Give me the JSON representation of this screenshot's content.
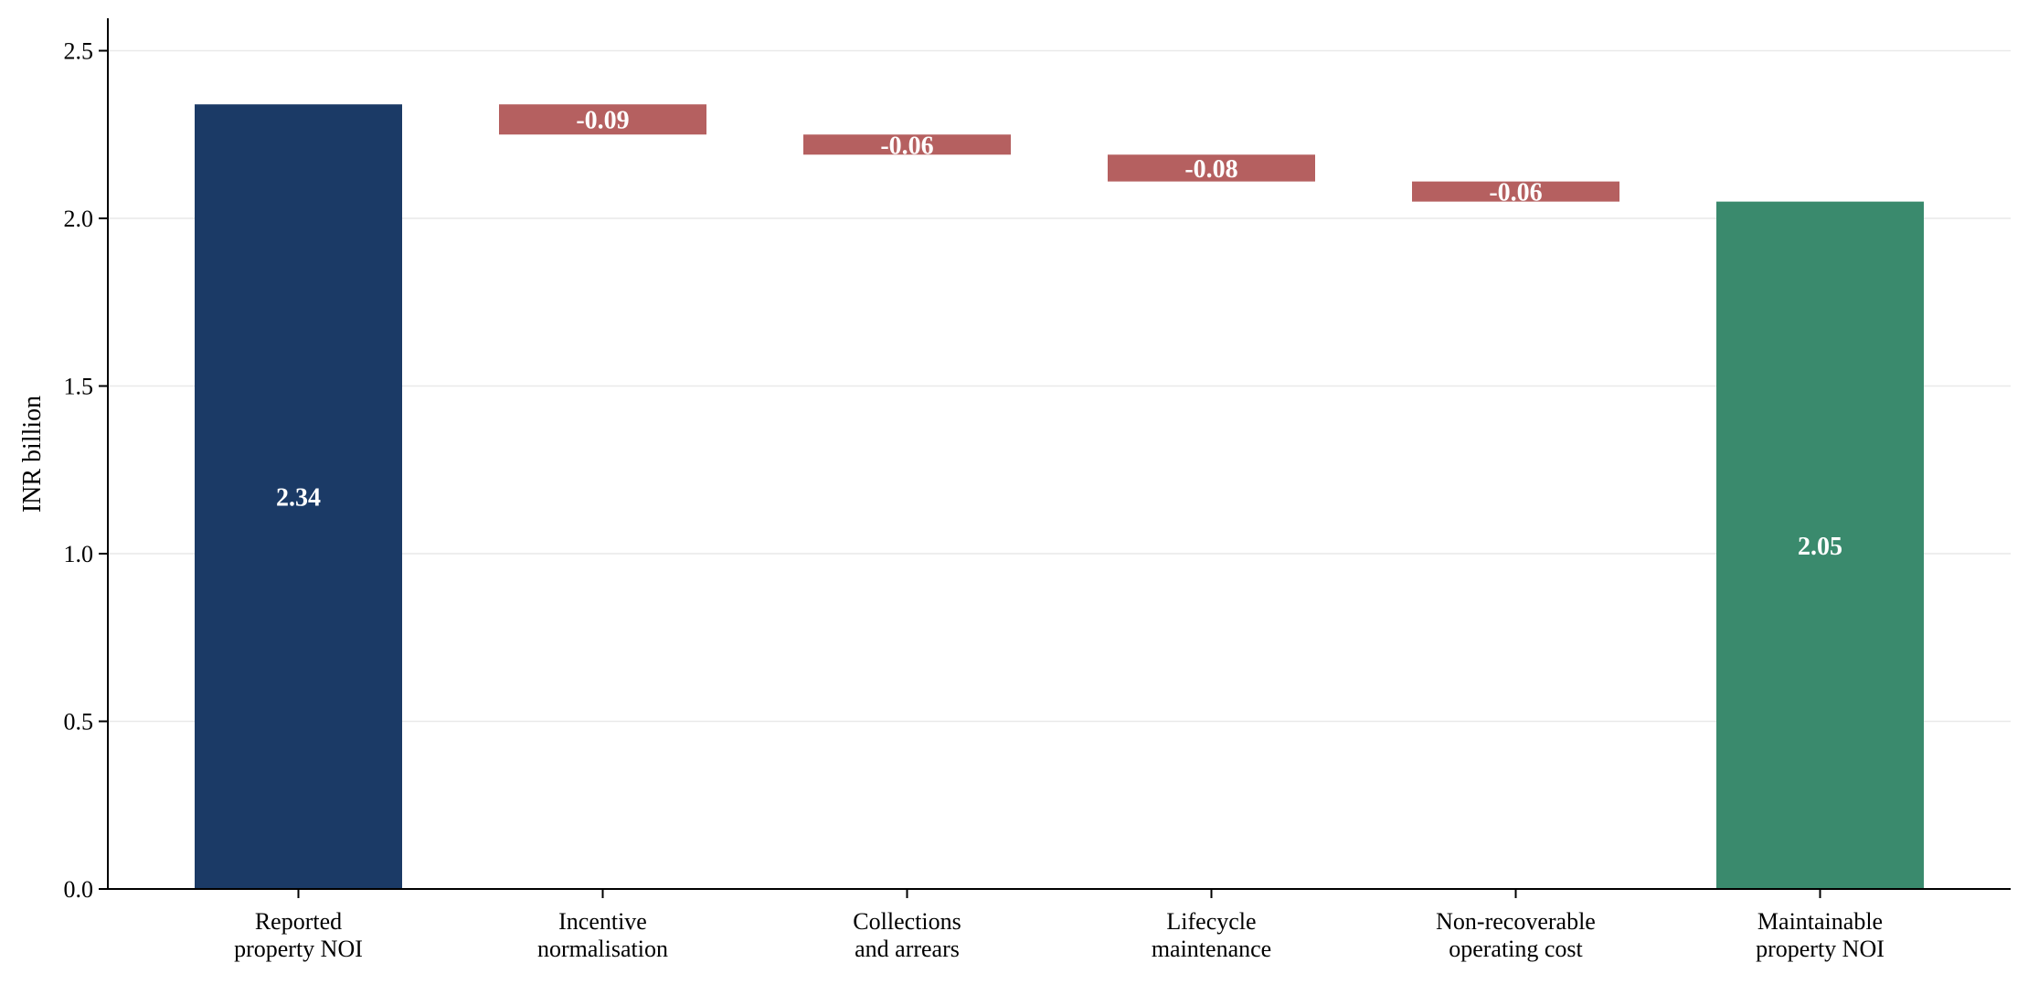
{
  "chart_data": {
    "type": "bar",
    "subtype": "waterfall",
    "title": "",
    "xlabel": "",
    "ylabel": "INR billion",
    "ylim": [
      0,
      2.6
    ],
    "yticks": [
      0.0,
      0.5,
      1.0,
      1.5,
      2.0,
      2.5
    ],
    "ytick_labels": [
      "0.0",
      "0.5",
      "1.0",
      "1.5",
      "2.0",
      "2.5"
    ],
    "grid": "horizontal",
    "legend": "none",
    "categories": [
      [
        "Reported",
        "property NOI"
      ],
      [
        "Incentive",
        "normalisation"
      ],
      [
        "Collections",
        "and arrears"
      ],
      [
        "Lifecycle",
        "maintenance"
      ],
      [
        "Non-recoverable",
        "operating cost"
      ],
      [
        "Maintainable",
        "property NOI"
      ]
    ],
    "bars": [
      {
        "kind": "total",
        "value": 2.34,
        "base": 0,
        "top": 2.34,
        "label": "2.34",
        "color": "#1b3a66"
      },
      {
        "kind": "decrease",
        "value": -0.09,
        "base": 2.25,
        "top": 2.34,
        "label": "-0.09",
        "color": "#b56060"
      },
      {
        "kind": "decrease",
        "value": -0.06,
        "base": 2.19,
        "top": 2.25,
        "label": "-0.06",
        "color": "#b56060"
      },
      {
        "kind": "decrease",
        "value": -0.08,
        "base": 2.11,
        "top": 2.19,
        "label": "-0.08",
        "color": "#b56060"
      },
      {
        "kind": "decrease",
        "value": -0.06,
        "base": 2.05,
        "top": 2.11,
        "label": "-0.06",
        "color": "#b56060"
      },
      {
        "kind": "total",
        "value": 2.05,
        "base": 0,
        "top": 2.05,
        "label": "2.05",
        "color": "#3a8a6d"
      }
    ]
  }
}
